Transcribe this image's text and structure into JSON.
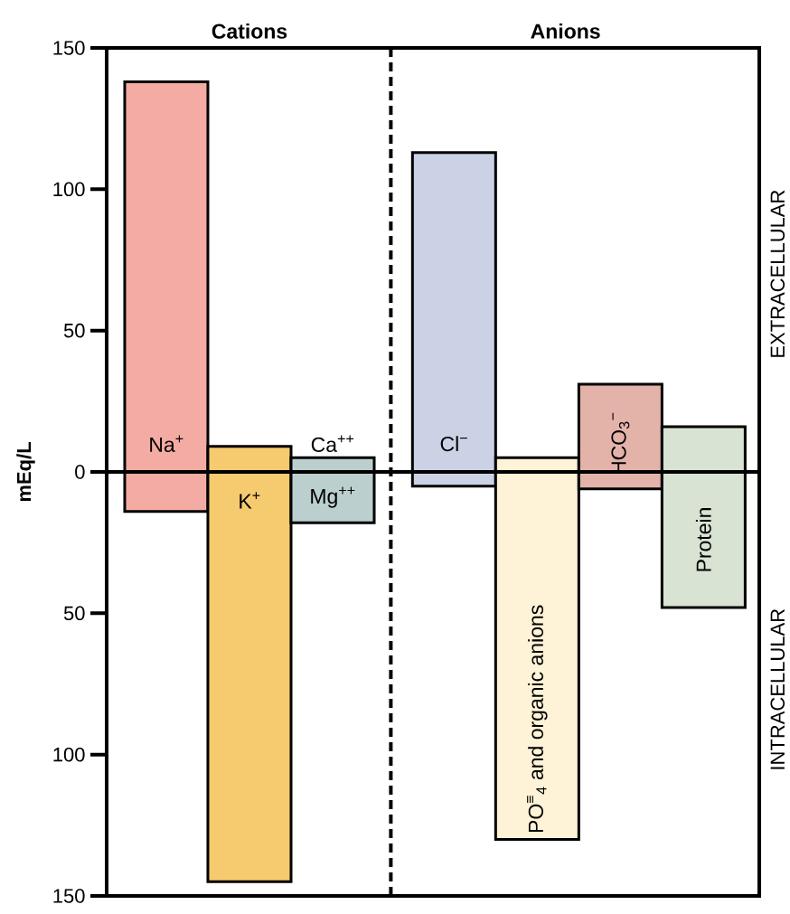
{
  "chart_data": {
    "type": "bar",
    "ylabel": "mEq/L",
    "categories": [
      "Na$^{+}$",
      "K$^{+}$",
      "Ca$^{++}$",
      "Cl$^{−}$",
      "PO$^{≡}$$_{4}$ and organic anions",
      "HCO$_{3}$$^{−}$",
      "Protein"
    ],
    "values": [
      152,
      154,
      23,
      118,
      135,
      37,
      64
    ],
    "base": [
      -14,
      -145,
      -18,
      -5,
      -130,
      -6,
      -48
    ],
    "colors": [
      "#f4aba3",
      "#f6ca6e",
      "#bccfcf",
      "#cbd2e6",
      "#fef3d6",
      "#e3b3aa",
      "#d8e3d3"
    ],
    "ylim": [
      -150,
      150
    ],
    "yticks": [
      {
        "value": -150,
        "label": "150"
      },
      {
        "value": -100,
        "label": "100"
      },
      {
        "value": -50,
        "label": "50"
      },
      0,
      50,
      100,
      150
    ],
    "annotations": [
      "Cations",
      "Anions",
      "EXTRACELLULAR",
      "INTRACELLULAR",
      "Mg$^{++}$"
    ],
    "grid": false
  }
}
